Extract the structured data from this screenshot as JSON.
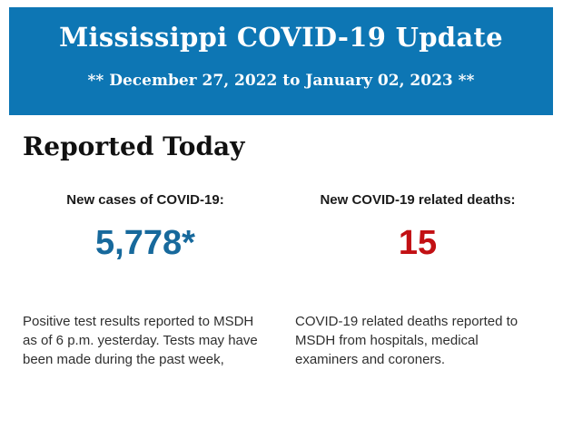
{
  "colors": {
    "header_bg": "#0d76b4",
    "header_text": "#ffffff",
    "heading_text": "#111111",
    "label_text": "#1b1b1b",
    "cases_value": "#17699c",
    "deaths_value": "#c21014",
    "body_text": "#2f2f2f",
    "page_bg": "#ffffff"
  },
  "header": {
    "title": "Mississippi COVID-19 Update",
    "date_range": "** December 27, 2022 to January 02, 2023 **"
  },
  "main": {
    "heading": "Reported Today",
    "stats": [
      {
        "label": "New cases of COVID-19:",
        "value": "5,778*",
        "description": "Positive test results reported to MSDH as of 6 p.m. yesterday. Tests may have been made during the past week,"
      },
      {
        "label": "New COVID-19 related deaths:",
        "value": "15",
        "description": "COVID-19 related deaths reported to MSDH from hospitals, medical examiners and coroners."
      }
    ]
  }
}
